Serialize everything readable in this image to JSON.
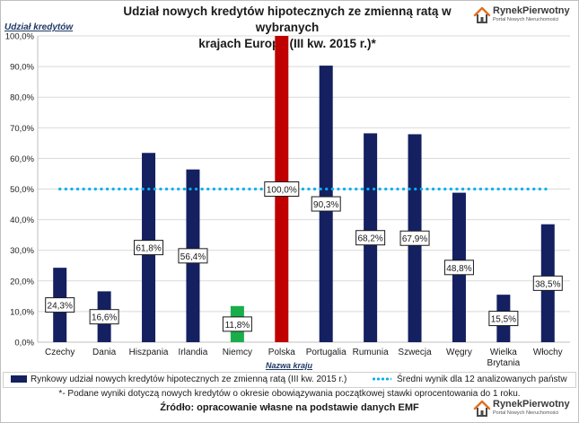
{
  "header": {
    "title_line1": "Udział nowych kredytów hipotecznych ze zmienną ratą w wybranych",
    "title_line2": "krajach Europy (III kw. 2015 r.)*"
  },
  "logo": {
    "name": "RynekPierwotny",
    "tagline": "Portal Nowych Nieruchomości"
  },
  "colors": {
    "bar": "#142060",
    "highlight_bar": "#c00000",
    "min_bar": "#1aad4b",
    "average_line": "#00b0f0"
  },
  "chart_data": {
    "type": "bar",
    "categories": [
      "Czechy",
      "Dania",
      "Hiszpania",
      "Irlandia",
      "Niemcy",
      "Polska",
      "Portugalia",
      "Rumunia",
      "Szwecja",
      "Węgry",
      "Wielka Brytania",
      "Włochy"
    ],
    "category_labels": [
      [
        "Czechy"
      ],
      [
        "Dania"
      ],
      [
        "Hiszpania"
      ],
      [
        "Irlandia"
      ],
      [
        "Niemcy"
      ],
      [
        "Polska"
      ],
      [
        "Portugalia"
      ],
      [
        "Rumunia"
      ],
      [
        "Szwecja"
      ],
      [
        "Węgry"
      ],
      [
        "Wielka",
        "Brytania"
      ],
      [
        "Włochy"
      ]
    ],
    "series": [
      {
        "name": "Rynkowy udział nowych kredytów hipotecznych ze zmienną ratą (III kw. 2015 r.)",
        "values": [
          24.3,
          16.6,
          61.8,
          56.4,
          11.8,
          100.0,
          90.3,
          68.2,
          67.9,
          48.8,
          15.5,
          38.5
        ],
        "data_labels": [
          "24,3%",
          "16,6%",
          "61,8%",
          "56,4%",
          "11,8%",
          "100,0%",
          "90,3%",
          "68,2%",
          "67,9%",
          "48,8%",
          "15,5%",
          "38,5%"
        ]
      },
      {
        "name": "Średni wynik dla 12 analizowanych państw",
        "type": "line",
        "value": 50.0
      }
    ],
    "highlight_category": "Polska",
    "min_category": "Niemcy",
    "ylabel": "Udział kredytów",
    "xlabel": "Nazwa kraju",
    "ylim": [
      0,
      100
    ],
    "y_ticks": [
      "0,0%",
      "10,0%",
      "20,0%",
      "30,0%",
      "40,0%",
      "50,0%",
      "60,0%",
      "70,0%",
      "80,0%",
      "90,0%",
      "100,0%"
    ],
    "grid": true,
    "legend_position": "bottom"
  },
  "footer": {
    "footnote": "*- Podane wyniki dotyczą nowych kredytów o okresie obowiązywania początkowej stawki oprocentowania do 1 roku.",
    "source": "Źródło: opracowanie własne na podstawie danych EMF"
  }
}
